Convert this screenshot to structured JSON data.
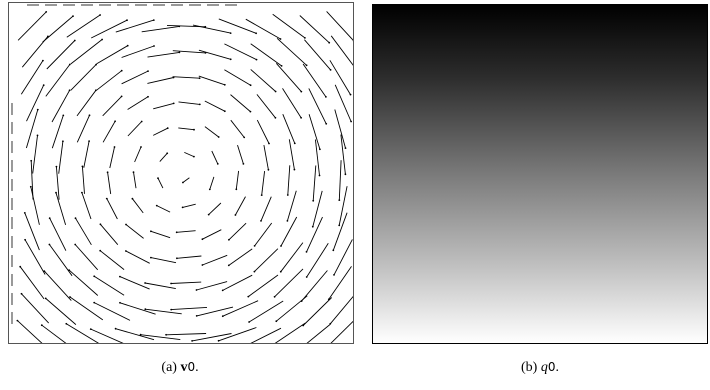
{
  "figure": {
    "panel_a": {
      "type": "vector-field",
      "caption_prefix": "(a)",
      "symbol": "v",
      "subscript": "0",
      "suffix": "."
    },
    "panel_b": {
      "type": "grayscale-gradient",
      "caption_prefix": "(b)",
      "symbol": "q",
      "subscript": "0",
      "suffix": ".",
      "gradient_colors": [
        "#000000",
        "#2e2e2e",
        "#7a7a7a",
        "#c2c2c2",
        "#ffffff"
      ],
      "direction": "top-to-bottom"
    }
  }
}
